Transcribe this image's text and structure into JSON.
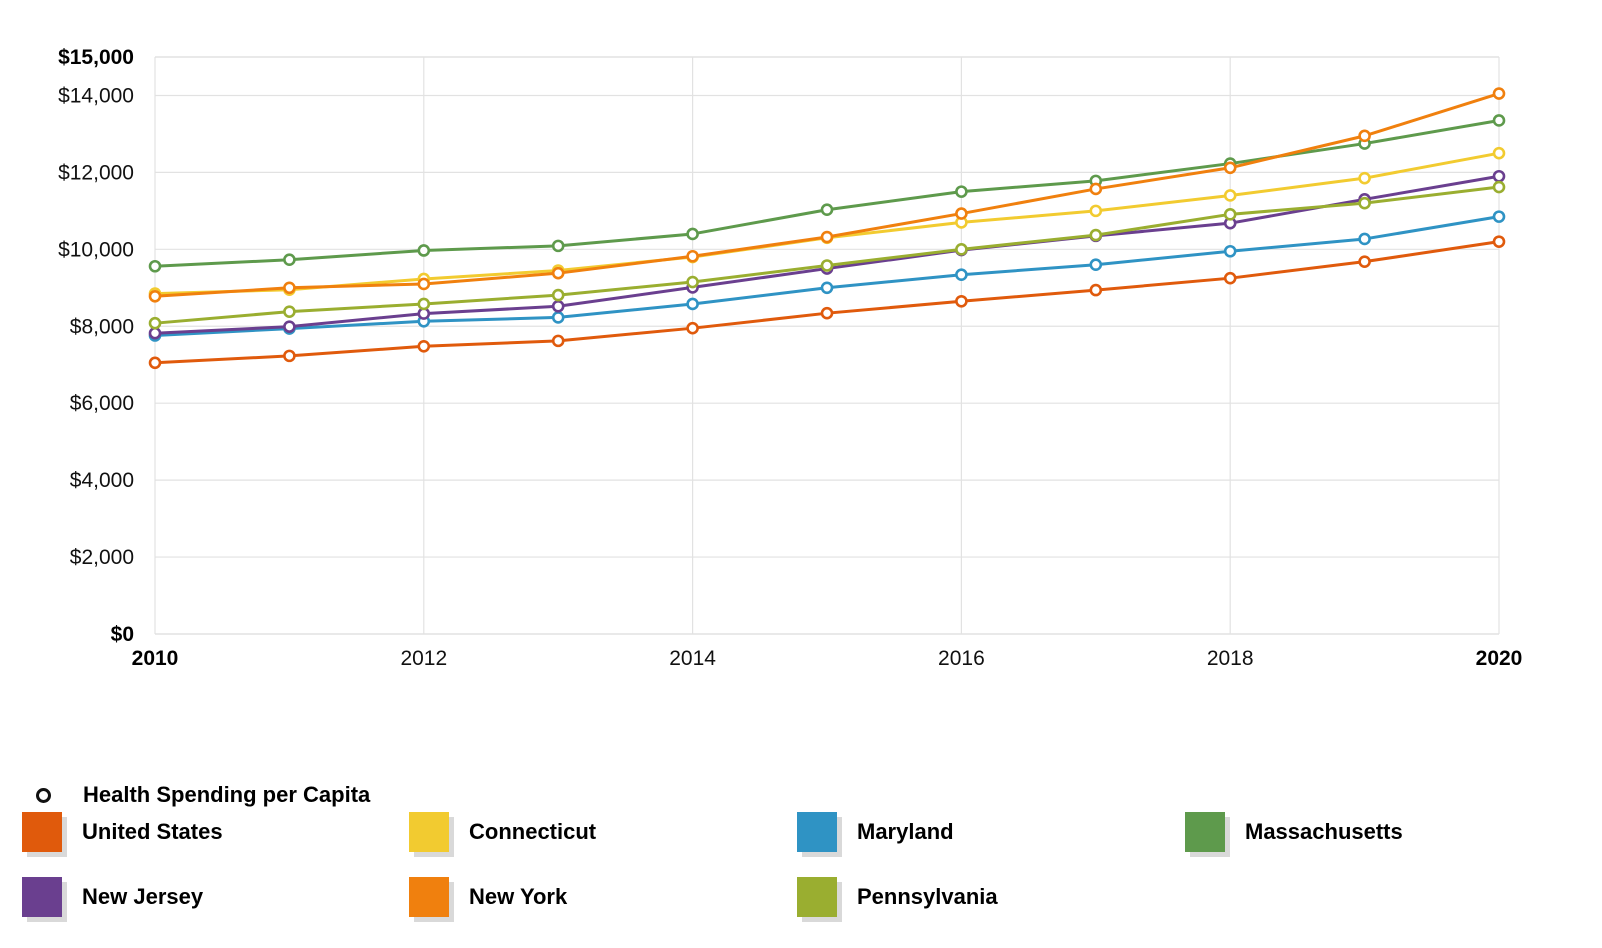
{
  "chart_data": {
    "type": "line",
    "title": "",
    "xlabel": "",
    "ylabel": "",
    "x": [
      2010,
      2011,
      2012,
      2013,
      2014,
      2015,
      2016,
      2017,
      2018,
      2019,
      2020
    ],
    "xlim": [
      2010,
      2020
    ],
    "ylim": [
      0,
      15000
    ],
    "x_ticks": [
      "2010",
      "2012",
      "2014",
      "2016",
      "2018",
      "2020"
    ],
    "y_ticks": [
      "$0",
      "$2,000",
      "$4,000",
      "$6,000",
      "$8,000",
      "$10,000",
      "$12,000",
      "$14,000",
      "$15,000"
    ],
    "grid": true,
    "legend_title": "Health Spending per Capita",
    "legend_position": "bottom",
    "series": [
      {
        "name": "United States",
        "color": "#E05A0C",
        "values": [
          7050,
          7230,
          7480,
          7620,
          7950,
          8340,
          8650,
          8940,
          9250,
          9680,
          10200
        ]
      },
      {
        "name": "Connecticut",
        "color": "#F2CB30",
        "values": [
          8850,
          8950,
          9230,
          9450,
          9800,
          10300,
          10700,
          11000,
          11400,
          11850,
          12500
        ]
      },
      {
        "name": "Maryland",
        "color": "#2F93C4",
        "values": [
          7760,
          7940,
          8130,
          8230,
          8580,
          9000,
          9340,
          9600,
          9950,
          10270,
          10850
        ]
      },
      {
        "name": "Massachusetts",
        "color": "#5E9A4C",
        "values": [
          9560,
          9730,
          9970,
          10090,
          10400,
          11030,
          11500,
          11780,
          12230,
          12750,
          13350
        ]
      },
      {
        "name": "New Jersey",
        "color": "#6A3F8F",
        "values": [
          7820,
          7990,
          8330,
          8520,
          9010,
          9500,
          9980,
          10350,
          10680,
          11300,
          11900
        ]
      },
      {
        "name": "New York",
        "color": "#F0800E",
        "values": [
          8780,
          9000,
          9100,
          9380,
          9820,
          10320,
          10930,
          11570,
          12120,
          12950,
          14050
        ]
      },
      {
        "name": "Pennsylvania",
        "color": "#9AAE30",
        "values": [
          8080,
          8380,
          8580,
          8810,
          9150,
          9580,
          10000,
          10370,
          10910,
          11200,
          11620
        ]
      }
    ]
  }
}
